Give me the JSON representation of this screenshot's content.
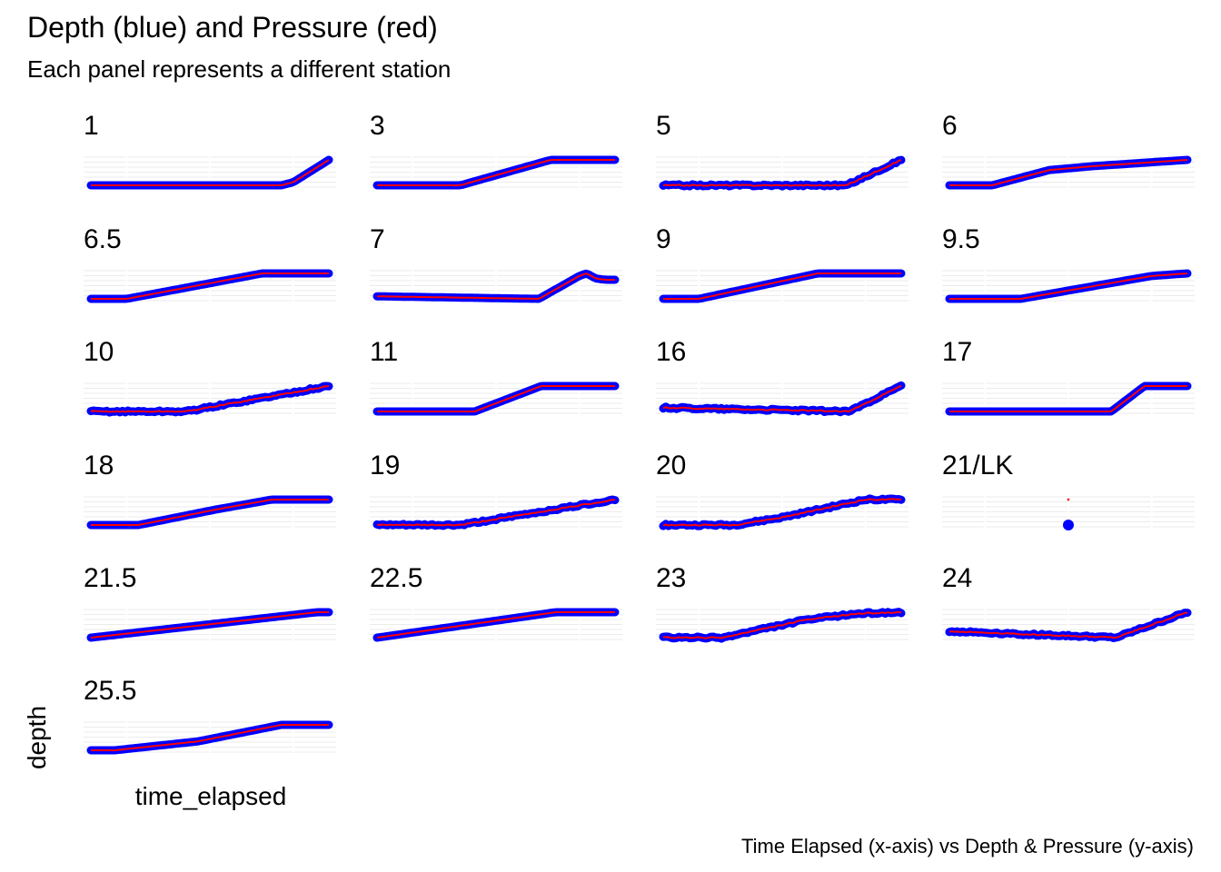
{
  "header": {
    "title": "Depth (blue) and Pressure (red)",
    "subtitle": "Each panel represents a different station",
    "caption": "Time Elapsed (x-axis) vs Depth & Pressure (y-axis)"
  },
  "colors": {
    "depth": "#0000ff",
    "pressure": "#ff0000",
    "grid": "#ebebeb"
  },
  "chart_data": {
    "type": "line",
    "xlabel": "time_elapsed",
    "ylabel": "depth",
    "facet_by": "station",
    "note": "Axis tick labels are not shown; values are normalized 0-1 in each panel (0 = start of time / bottom of panel, 1 = end of time / top of panel).",
    "series_names": [
      "depth",
      "pressure"
    ],
    "panels": [
      {
        "station": "1",
        "points": [
          [
            0,
            0
          ],
          [
            0.8,
            0
          ],
          [
            0.85,
            0.12
          ],
          [
            1,
            1
          ]
        ]
      },
      {
        "station": "3",
        "points": [
          [
            0,
            0
          ],
          [
            0.35,
            0
          ],
          [
            0.73,
            1
          ],
          [
            1,
            1
          ]
        ]
      },
      {
        "station": "5",
        "points": [
          [
            0,
            0
          ],
          [
            0.77,
            0
          ],
          [
            1,
            1
          ]
        ],
        "noisy": true
      },
      {
        "station": "6",
        "points": [
          [
            0,
            0
          ],
          [
            0.18,
            0
          ],
          [
            0.42,
            0.6
          ],
          [
            0.6,
            0.75
          ],
          [
            1,
            1
          ]
        ]
      },
      {
        "station": "6.5",
        "points": [
          [
            0,
            0
          ],
          [
            0.15,
            0
          ],
          [
            0.72,
            1
          ],
          [
            1,
            1
          ]
        ]
      },
      {
        "station": "7",
        "points": [
          [
            0,
            0.1
          ],
          [
            0.68,
            0
          ],
          [
            0.85,
            0.9
          ],
          [
            0.88,
            1
          ],
          [
            0.92,
            0.8
          ],
          [
            0.96,
            0.75
          ],
          [
            1,
            0.75
          ]
        ]
      },
      {
        "station": "9",
        "points": [
          [
            0,
            0
          ],
          [
            0.15,
            0
          ],
          [
            0.65,
            1
          ],
          [
            1,
            1
          ]
        ]
      },
      {
        "station": "9.5",
        "points": [
          [
            0,
            0
          ],
          [
            0.3,
            0
          ],
          [
            0.85,
            0.9
          ],
          [
            1,
            1
          ]
        ]
      },
      {
        "station": "10",
        "points": [
          [
            0,
            0
          ],
          [
            0.4,
            0
          ],
          [
            1,
            1
          ]
        ],
        "noisy": true
      },
      {
        "station": "11",
        "points": [
          [
            0,
            0
          ],
          [
            0.41,
            0
          ],
          [
            0.69,
            1
          ],
          [
            1,
            1
          ]
        ]
      },
      {
        "station": "16",
        "points": [
          [
            0,
            0.15
          ],
          [
            0.78,
            0
          ],
          [
            1,
            1
          ]
        ],
        "noisy": true
      },
      {
        "station": "17",
        "points": [
          [
            0,
            0
          ],
          [
            0.68,
            0
          ],
          [
            0.82,
            1
          ],
          [
            1,
            1
          ]
        ]
      },
      {
        "station": "18",
        "points": [
          [
            0,
            0
          ],
          [
            0.2,
            0
          ],
          [
            0.52,
            0.6
          ],
          [
            0.76,
            1
          ],
          [
            1,
            1
          ]
        ]
      },
      {
        "station": "19",
        "points": [
          [
            0,
            0
          ],
          [
            0.35,
            0
          ],
          [
            1,
            1
          ]
        ],
        "noisy": true
      },
      {
        "station": "20",
        "points": [
          [
            0,
            0
          ],
          [
            0.3,
            0
          ],
          [
            0.5,
            0.3
          ],
          [
            0.85,
            1
          ],
          [
            1,
            1
          ]
        ],
        "noisy": true
      },
      {
        "station": "21/LK",
        "points": [
          [
            0.5,
            0
          ],
          [
            0.5,
            1
          ]
        ],
        "single_point": true
      },
      {
        "station": "21.5",
        "points": [
          [
            0,
            0
          ],
          [
            0.95,
            1
          ],
          [
            1,
            1
          ]
        ]
      },
      {
        "station": "22.5",
        "points": [
          [
            0,
            0
          ],
          [
            0.75,
            1
          ],
          [
            1,
            1
          ]
        ]
      },
      {
        "station": "23",
        "points": [
          [
            0,
            0
          ],
          [
            0.25,
            0
          ],
          [
            0.6,
            0.7
          ],
          [
            0.82,
            0.95
          ],
          [
            1,
            1
          ]
        ],
        "noisy": true
      },
      {
        "station": "24",
        "points": [
          [
            0,
            0.25
          ],
          [
            0.7,
            0
          ],
          [
            1,
            1
          ]
        ],
        "noisy": true
      },
      {
        "station": "25.5",
        "points": [
          [
            0,
            0
          ],
          [
            0.1,
            0
          ],
          [
            0.45,
            0.35
          ],
          [
            0.8,
            1
          ],
          [
            1,
            1
          ]
        ]
      }
    ]
  }
}
